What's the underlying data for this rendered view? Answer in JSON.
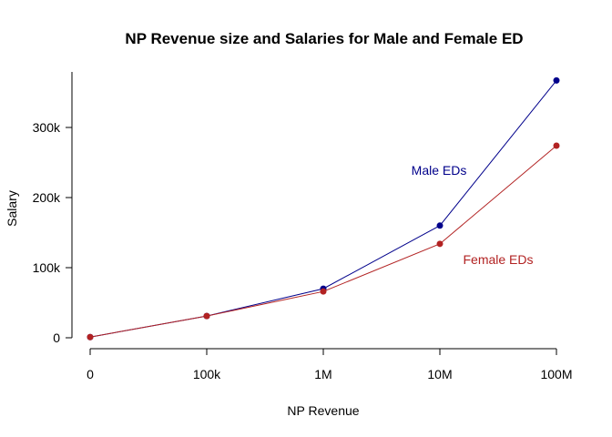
{
  "chart_data": {
    "type": "line",
    "title": "NP Revenue size and Salaries for Male and Female ED",
    "xlabel": "NP Revenue",
    "ylabel": "Salary",
    "categories": [
      "0",
      "100k",
      "1M",
      "10M",
      "100M"
    ],
    "y_ticks": [
      {
        "value": 0,
        "label": "0"
      },
      {
        "value": 100000,
        "label": "100k"
      },
      {
        "value": 200000,
        "label": "200k"
      },
      {
        "value": 300000,
        "label": "300k"
      }
    ],
    "ylim": [
      0,
      380000
    ],
    "grid": false,
    "legend": "none",
    "series": [
      {
        "name": "Male EDs",
        "color": "#00008b",
        "values": [
          1000,
          31000,
          70000,
          160000,
          367000
        ]
      },
      {
        "name": "Female EDs",
        "color": "#b22222",
        "values": [
          1000,
          31000,
          66000,
          134000,
          274000
        ]
      }
    ]
  }
}
